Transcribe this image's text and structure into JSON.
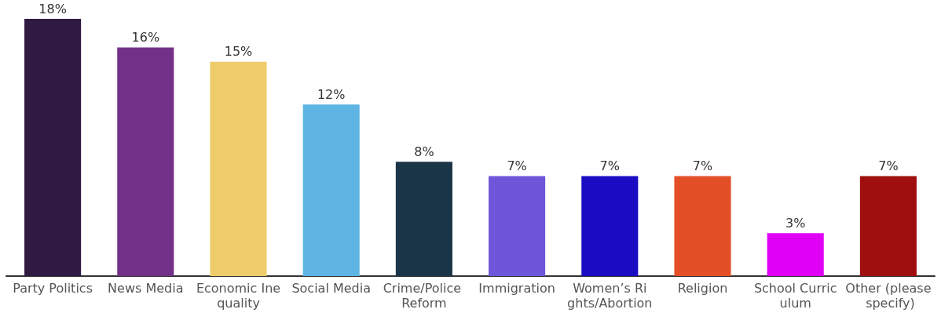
{
  "chart_data": {
    "type": "bar",
    "categories": [
      "Party Politics",
      "News Media",
      "Economic Inequality",
      "Social Media",
      "Crime/Police Reform",
      "Immigration",
      "Women’s Rights/Abortion",
      "Religion",
      "School Curriculum",
      "Other (please specify)"
    ],
    "values": [
      18,
      16,
      15,
      12,
      8,
      7,
      7,
      7,
      3,
      7
    ],
    "colors": [
      "#2f1a42",
      "#733089",
      "#eecc6c",
      "#5eb5e3",
      "#1b3548",
      "#6e56db",
      "#1a0cc2",
      "#e34f26",
      "#e000f5",
      "#a00f0f"
    ],
    "value_labels": [
      "18%",
      "16%",
      "15%",
      "12%",
      "8%",
      "7%",
      "7%",
      "7%",
      "3%",
      "7%"
    ]
  }
}
